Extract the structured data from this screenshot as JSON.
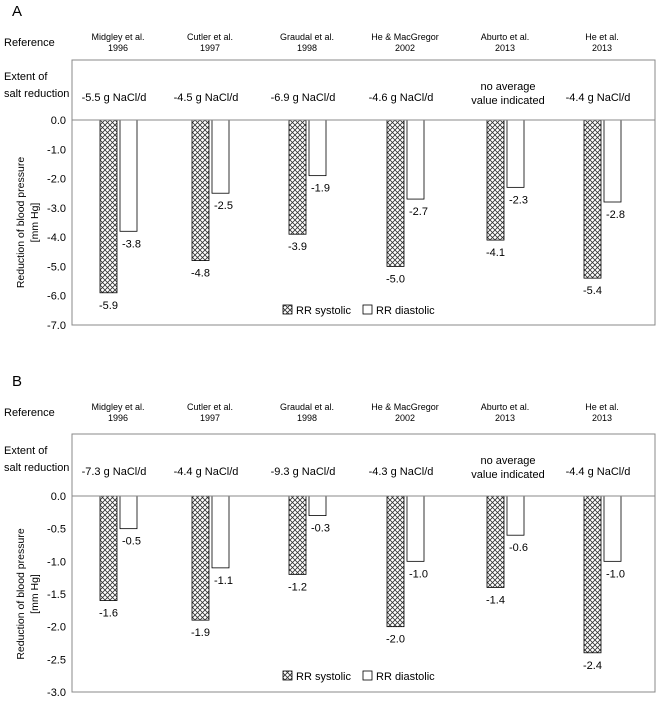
{
  "chart_data": [
    {
      "type": "bar",
      "panel_label": "A",
      "reference_label": "Reference",
      "extent_label_line1": "Extent of",
      "extent_label_line2": "salt reduction",
      "ylabel_line1": "Reduction of blood pressure",
      "ylabel_line2": "[mm Hg]",
      "ylim": [
        -7.0,
        0.0
      ],
      "yticks": [
        "0.0",
        "-1.0",
        "-2.0",
        "-3.0",
        "-4.0",
        "-5.0",
        "-6.0",
        "-7.0"
      ],
      "categories": [
        {
          "ref1": "Midgley et al.",
          "ref2": "1996",
          "salt1": "-5.5 g NaCl/d",
          "salt2": ""
        },
        {
          "ref1": "Cutler et al.",
          "ref2": "1997",
          "salt1": "-4.5 g NaCl/d",
          "salt2": ""
        },
        {
          "ref1": "Graudal et al.",
          "ref2": "1998",
          "salt1": "-6.9 g NaCl/d",
          "salt2": ""
        },
        {
          "ref1": "He & MacGregor",
          "ref2": "2002",
          "salt1": "-4.6 g NaCl/d",
          "salt2": ""
        },
        {
          "ref1": "Aburto et al.",
          "ref2": "2013",
          "salt1": "no average",
          "salt2": "value indicated"
        },
        {
          "ref1": "He et al.",
          "ref2": "2013",
          "salt1": "-4.4 g NaCl/d",
          "salt2": ""
        }
      ],
      "series": [
        {
          "name": "RR systolic",
          "values": [
            -5.9,
            -4.8,
            -3.9,
            -5.0,
            -4.1,
            -5.4
          ],
          "labels": [
            "-5.9",
            "-4.8",
            "-3.9",
            "-5.0",
            "-4.1",
            "-5.4"
          ]
        },
        {
          "name": "RR diastolic",
          "values": [
            -3.8,
            -2.5,
            -1.9,
            -2.7,
            -2.3,
            -2.8
          ],
          "labels": [
            "-3.8",
            "-2.5",
            "-1.9",
            "-2.7",
            "-2.3",
            "-2.8"
          ]
        }
      ],
      "legend": [
        "RR systolic",
        "RR diastolic"
      ]
    },
    {
      "type": "bar",
      "panel_label": "B",
      "reference_label": "Reference",
      "extent_label_line1": "Extent of",
      "extent_label_line2": "salt reduction",
      "ylabel_line1": "Reduction of blood pressure",
      "ylabel_line2": "[mm Hg]",
      "ylim": [
        -3.0,
        0.0
      ],
      "yticks": [
        "0.0",
        "-0.5",
        "-1.0",
        "-1.5",
        "-2.0",
        "-2.5",
        "-3.0"
      ],
      "categories": [
        {
          "ref1": "Midgley et al.",
          "ref2": "1996",
          "salt1": "-7.3 g NaCl/d",
          "salt2": ""
        },
        {
          "ref1": "Cutler et al.",
          "ref2": "1997",
          "salt1": "-4.4 g NaCl/d",
          "salt2": ""
        },
        {
          "ref1": "Graudal et al.",
          "ref2": "1998",
          "salt1": "-9.3 g NaCl/d",
          "salt2": ""
        },
        {
          "ref1": "He & MacGregor",
          "ref2": "2002",
          "salt1": "-4.3 g NaCl/d",
          "salt2": ""
        },
        {
          "ref1": "Aburto et al.",
          "ref2": "2013",
          "salt1": "no average",
          "salt2": "value indicated"
        },
        {
          "ref1": "He et al.",
          "ref2": "2013",
          "salt1": "-4.4 g NaCl/d",
          "salt2": ""
        }
      ],
      "series": [
        {
          "name": "RR systolic",
          "values": [
            -1.6,
            -1.9,
            -1.2,
            -2.0,
            -1.4,
            -2.4
          ],
          "labels": [
            "-1.6",
            "-1.9",
            "-1.2",
            "-2.0",
            "-1.4",
            "-2.4"
          ]
        },
        {
          "name": "RR diastolic",
          "values": [
            -0.5,
            -1.1,
            -0.3,
            -1.0,
            -0.6,
            -1.0
          ],
          "labels": [
            "-0.5",
            "-1.1",
            "-0.3",
            "-1.0",
            "-0.6",
            "-1.0"
          ]
        }
      ],
      "legend": [
        "RR systolic",
        "RR diastolic"
      ]
    }
  ]
}
